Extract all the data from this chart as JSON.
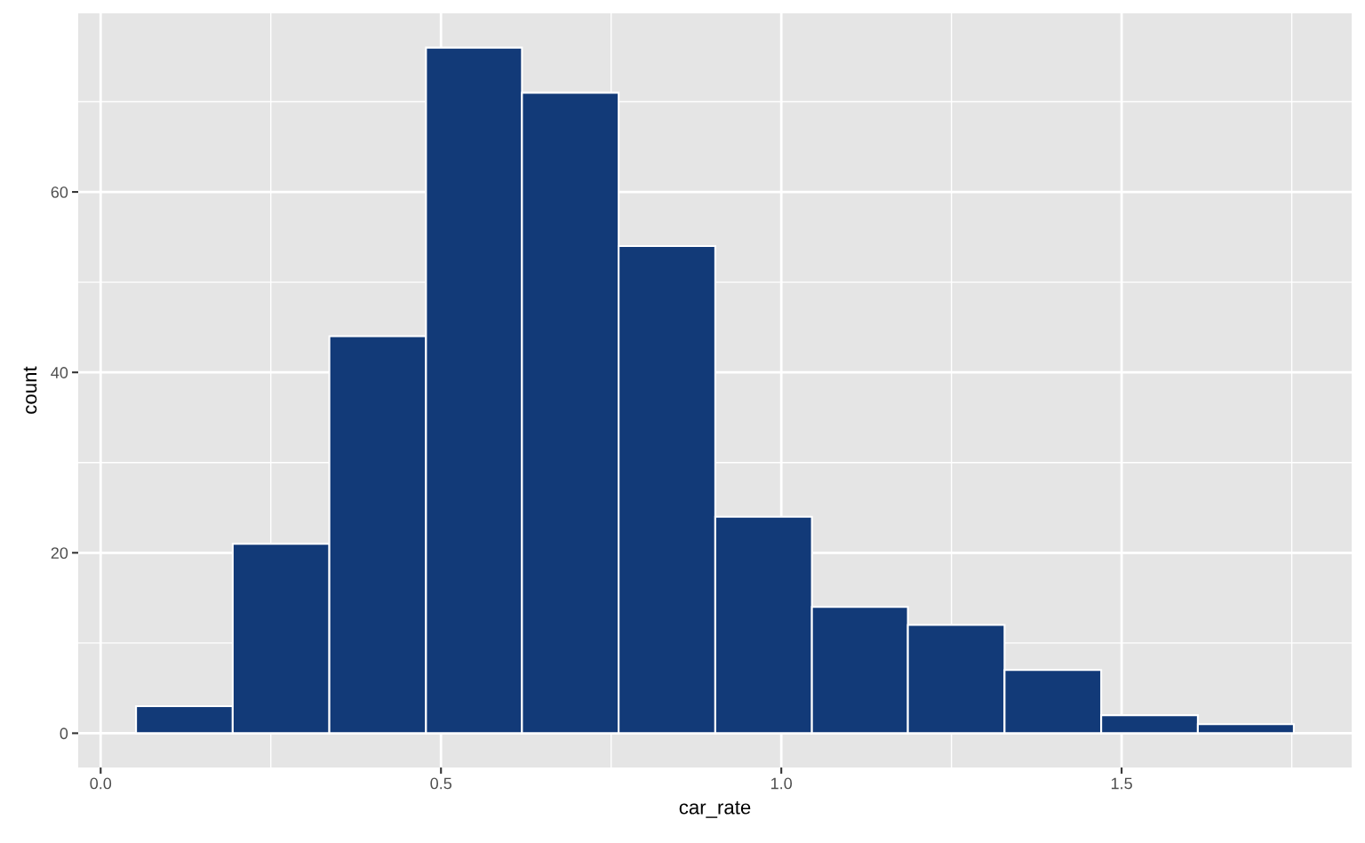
{
  "chart_data": {
    "type": "histogram",
    "xlabel": "car_rate",
    "ylabel": "count",
    "bins": [
      0.052,
      0.194,
      0.336,
      0.478,
      0.619,
      0.761,
      0.903,
      1.045,
      1.186,
      1.328,
      1.47,
      1.612,
      1.753
    ],
    "values": [
      3,
      21,
      44,
      76,
      71,
      54,
      24,
      14,
      12,
      7,
      2,
      1
    ],
    "color": "#123a78",
    "xlim": [
      -0.033,
      1.838
    ],
    "xticks": [
      {
        "value": 0,
        "label": "0.0"
      },
      0.5,
      {
        "value": 1,
        "label": "1.0"
      },
      1.5
    ],
    "ylim": [
      -3.8,
      79.8
    ],
    "yticks": [
      0,
      20,
      40,
      60
    ],
    "grid": true
  }
}
